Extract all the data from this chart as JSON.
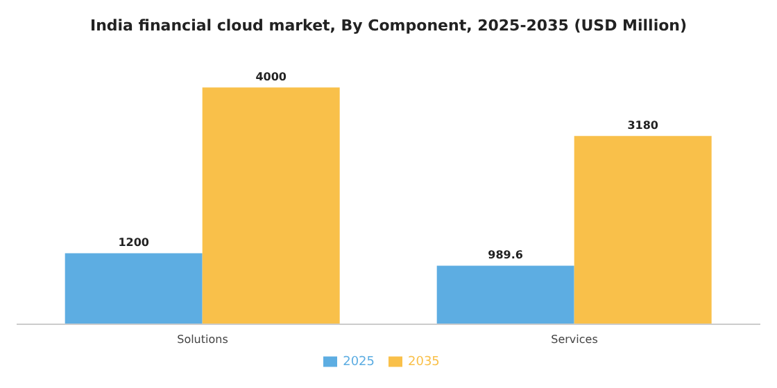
{
  "chart_data": {
    "type": "bar",
    "title": "India financial cloud market, By Component, 2025-2035 (USD Million)",
    "categories": [
      "Solutions",
      "Services"
    ],
    "series": [
      {
        "name": "2025",
        "color": "#5dade2",
        "values": [
          1200,
          989.6
        ]
      },
      {
        "name": "2035",
        "color": "#f9c04a",
        "values": [
          4000,
          3180
        ]
      }
    ],
    "data_labels": true,
    "legend": "bottom",
    "grid": false
  }
}
